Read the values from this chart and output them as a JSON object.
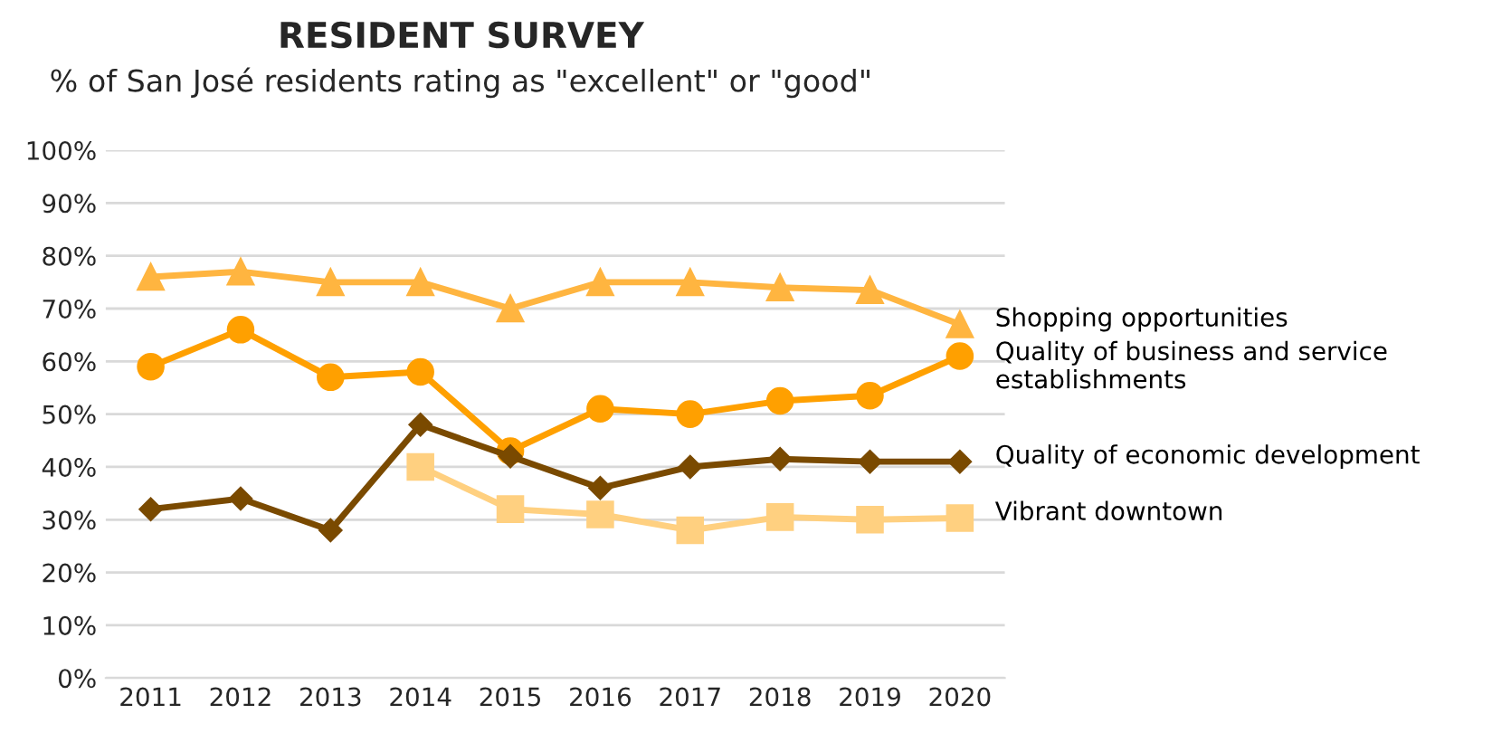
{
  "chart_data": {
    "type": "line",
    "title": "RESIDENT SURVEY",
    "subtitle": "% of San José residents rating as \"excellent\" or \"good\"",
    "categories": [
      "2011",
      "2012",
      "2013",
      "2014",
      "2015",
      "2016",
      "2017",
      "2018",
      "2019",
      "2020"
    ],
    "series": [
      {
        "name": "Shopping opportunities",
        "color": "#ffb540",
        "marker": "triangle",
        "values": [
          76,
          77,
          75,
          75,
          70,
          75,
          75,
          74,
          73.5,
          67
        ]
      },
      {
        "name": "Quality of business and service\nestablishments",
        "color": "#ffa000",
        "marker": "circle",
        "values": [
          59,
          66,
          57,
          58,
          43,
          51,
          50,
          52.5,
          53.5,
          61
        ]
      },
      {
        "name": "Quality of economic development",
        "color": "#7a4a00",
        "marker": "diamond",
        "values": [
          32,
          34,
          28,
          48,
          42,
          36,
          40,
          41.5,
          41,
          41
        ]
      },
      {
        "name": "Vibrant downtown",
        "color": "#ffd080",
        "marker": "square",
        "values": [
          null,
          null,
          null,
          40,
          32,
          31,
          28,
          30.5,
          30,
          30.3
        ]
      }
    ],
    "ylim": [
      0,
      100
    ],
    "yticks": [
      {
        "value": 0,
        "label": "0%"
      },
      {
        "value": 10,
        "label": "10%"
      },
      {
        "value": 20,
        "label": "20%"
      },
      {
        "value": 30,
        "label": "30%"
      },
      {
        "value": 40,
        "label": "40%"
      },
      {
        "value": 50,
        "label": "50%"
      },
      {
        "value": 60,
        "label": "60%"
      },
      {
        "value": 70,
        "label": "70%"
      },
      {
        "value": 80,
        "label": "80%"
      },
      {
        "value": 90,
        "label": "90%"
      },
      {
        "value": 100,
        "label": "100%"
      }
    ],
    "grid": "y",
    "legend": false,
    "line_style": "solid"
  }
}
